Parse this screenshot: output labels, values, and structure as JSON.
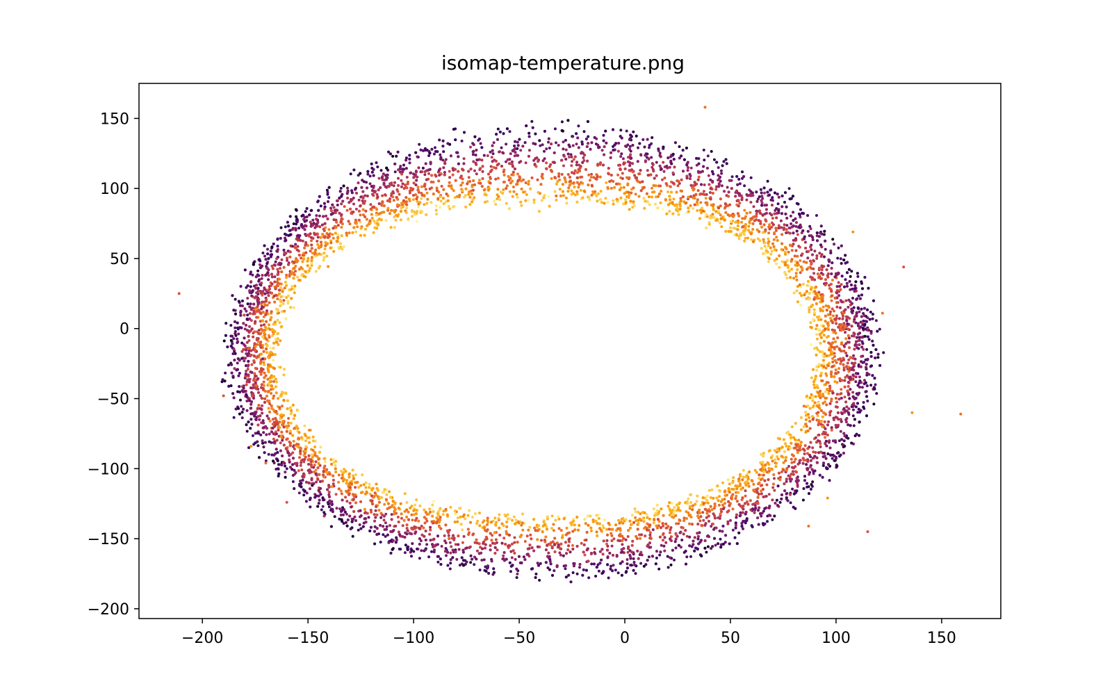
{
  "chart_data": {
    "type": "scatter",
    "title": "isomap-temperature.png",
    "xlabel": "",
    "ylabel": "",
    "xlim": [
      -230,
      178
    ],
    "ylim": [
      -207,
      175
    ],
    "xticks": [
      -200,
      -150,
      -100,
      -50,
      0,
      50,
      100,
      150
    ],
    "yticks": [
      -200,
      -150,
      -100,
      -50,
      0,
      50,
      100,
      150
    ],
    "xtick_labels": [
      "−200",
      "−150",
      "−100",
      "−50",
      "0",
      "50",
      "100",
      "150"
    ],
    "ytick_labels": [
      "−200",
      "−150",
      "−100",
      "−50",
      "0",
      "50",
      "100",
      "150"
    ],
    "grid": false,
    "legend": "none",
    "colormap": "inferno",
    "colormap_stops": [
      "#000004",
      "#420a68",
      "#932667",
      "#dd513a",
      "#fca50a",
      "#fcffa4"
    ],
    "marker_size": 2,
    "ring": {
      "center": [
        -34,
        -17
      ],
      "outer_radius_x": 154,
      "outer_radius_y": 162,
      "thickness_top": 55,
      "thickness_bottom": 45,
      "thickness_left": 22,
      "thickness_right": 28,
      "point_count": 9000
    },
    "outliers": [
      {
        "x": -211,
        "y": 25
      },
      {
        "x": 38,
        "y": 158
      },
      {
        "x": 88,
        "y": 1
      },
      {
        "x": 132,
        "y": 44
      },
      {
        "x": 159,
        "y": -61
      },
      {
        "x": 136,
        "y": -60
      },
      {
        "x": 115,
        "y": -145
      },
      {
        "x": 122,
        "y": 11
      },
      {
        "x": 108,
        "y": 69
      },
      {
        "x": -160,
        "y": -124
      },
      {
        "x": -170,
        "y": -96
      },
      {
        "x": -177,
        "y": -84
      },
      {
        "x": -190,
        "y": -48
      },
      {
        "x": 87,
        "y": -141
      },
      {
        "x": 96,
        "y": -121
      }
    ]
  }
}
